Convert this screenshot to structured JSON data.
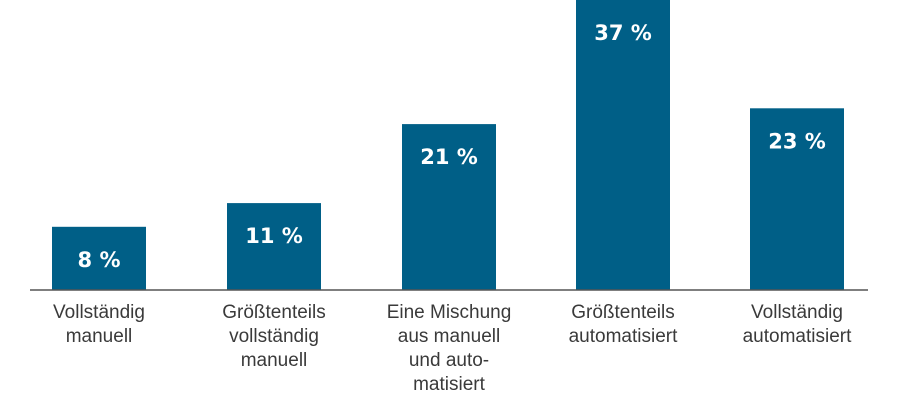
{
  "chart_data": {
    "type": "bar",
    "categories": [
      [
        "Vollständig",
        "manuell"
      ],
      [
        "Größtenteils",
        "vollständig",
        "manuell"
      ],
      [
        "Eine Mischung",
        "aus manuell",
        "und auto-",
        "matisiert"
      ],
      [
        "Größtenteils",
        "automatisiert"
      ],
      [
        "Vollständig",
        "automatisiert"
      ]
    ],
    "values": [
      8,
      11,
      21,
      37,
      23
    ],
    "data_labels": [
      "8 %",
      "11 %",
      "21 %",
      "37 %",
      "23 %"
    ],
    "bar_color": "#005f87",
    "axis_color": "#555555",
    "grid": false,
    "legend": "none"
  }
}
